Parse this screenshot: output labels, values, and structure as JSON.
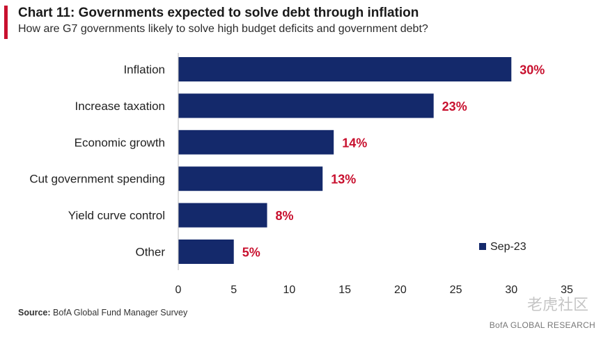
{
  "header": {
    "title": "Chart 11: Governments expected to solve debt through inflation",
    "subtitle": "How are G7  governments likely to solve high budget deficits and government debt?"
  },
  "chart_data": {
    "type": "bar",
    "orientation": "horizontal",
    "title": "Chart 11: Governments expected to solve debt through inflation",
    "subtitle": "How are G7  governments likely to solve high budget deficits and government debt?",
    "categories": [
      "Inflation",
      "Increase taxation",
      "Economic growth",
      "Cut government spending",
      "Yield curve control",
      "Other"
    ],
    "series": [
      {
        "name": "Sep-23",
        "values": [
          30,
          23,
          14,
          13,
          8,
          5
        ],
        "data_labels": [
          "30%",
          "23%",
          "14%",
          "13%",
          "8%",
          "5%"
        ]
      }
    ],
    "xlim": [
      0,
      35
    ],
    "x_ticks": [
      "0",
      "5",
      "10",
      "15",
      "20",
      "25",
      "30",
      "35"
    ],
    "grid": false,
    "legend_position": "bottom-right"
  },
  "colors": {
    "bar": "#14296b",
    "data_label": "#c8102e",
    "accent": "#c8102e"
  },
  "footer": {
    "source_label": "Source:",
    "source_text": "BofA Global Fund Manager Survey",
    "brand": "BofA GLOBAL RESEARCH",
    "watermark": "老虎社区"
  }
}
